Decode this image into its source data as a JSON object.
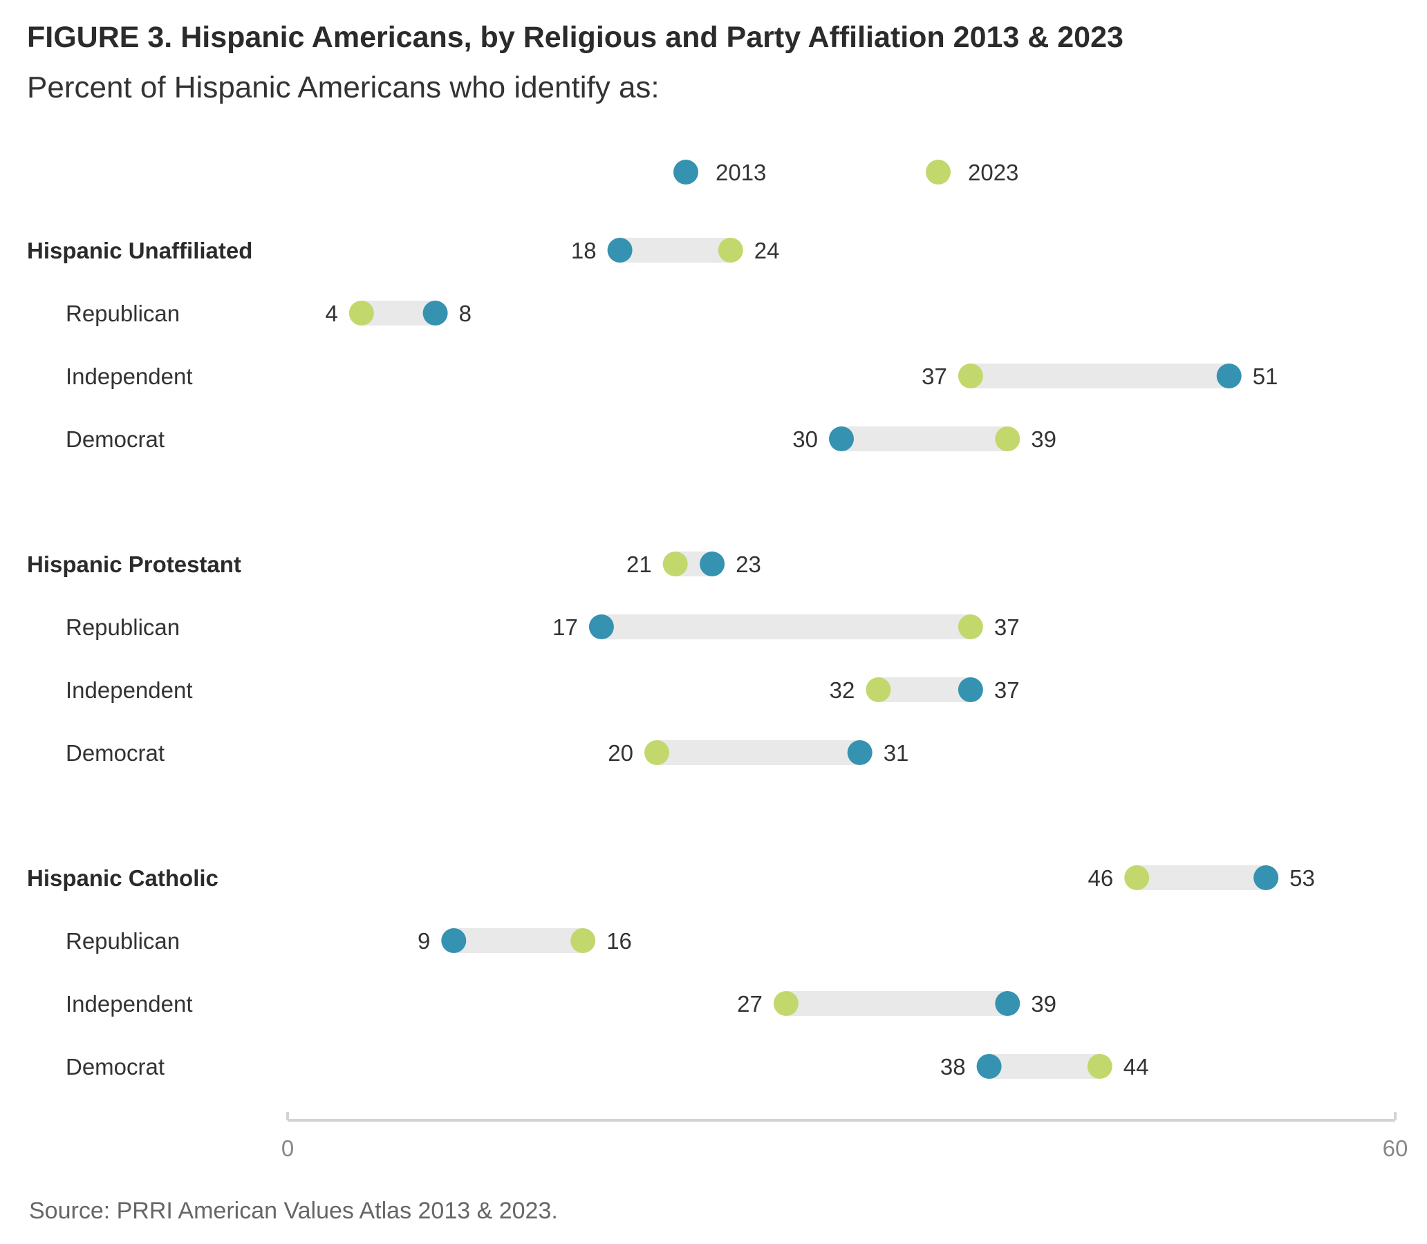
{
  "title": "FIGURE 3.  Hispanic Americans, by Religious and Party Affiliation 2013 & 2023",
  "subtitle": "Percent of Hispanic Americans who identify as:",
  "source": "Source: PRRI American Values Atlas 2013 & 2023.",
  "colors": {
    "y2013": "#3592b1",
    "y2023": "#c2d86c",
    "track": "#e8e9e8",
    "axis": "#d4d4d4"
  },
  "chart_data": {
    "type": "dumbbell",
    "xlim": [
      0,
      60
    ],
    "x_ticks": [
      "0",
      "60"
    ],
    "legend_position": "top-center",
    "series": [
      {
        "name": "2013"
      },
      {
        "name": "2023"
      }
    ],
    "rows": [
      {
        "label": "Hispanic Unaffiliated",
        "group_header": true,
        "v2013": 18,
        "v2023": 24
      },
      {
        "label": "Republican",
        "group_header": false,
        "v2013": 8,
        "v2023": 4
      },
      {
        "label": "Independent",
        "group_header": false,
        "v2013": 51,
        "v2023": 37
      },
      {
        "label": "Democrat",
        "group_header": false,
        "v2013": 30,
        "v2023": 39
      },
      {
        "label": "Hispanic Protestant",
        "group_header": true,
        "v2013": 23,
        "v2023": 21
      },
      {
        "label": "Republican",
        "group_header": false,
        "v2013": 17,
        "v2023": 37
      },
      {
        "label": "Independent",
        "group_header": false,
        "v2013": 37,
        "v2023": 32
      },
      {
        "label": "Democrat",
        "group_header": false,
        "v2013": 31,
        "v2023": 20
      },
      {
        "label": "Hispanic Catholic",
        "group_header": true,
        "v2013": 53,
        "v2023": 46
      },
      {
        "label": "Republican",
        "group_header": false,
        "v2013": 9,
        "v2023": 16
      },
      {
        "label": "Independent",
        "group_header": false,
        "v2013": 39,
        "v2023": 27
      },
      {
        "label": "Democrat",
        "group_header": false,
        "v2013": 38,
        "v2023": 44
      }
    ]
  }
}
